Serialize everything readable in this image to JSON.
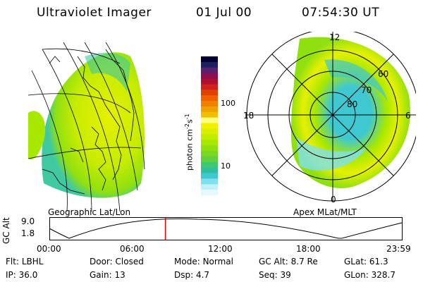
{
  "header": {
    "instrument": "Ultraviolet Imager",
    "date": "01 Jul 00",
    "time": "07:54:30 UT"
  },
  "geo_panel": {
    "label": "Geographic Lat/Lon"
  },
  "polar_panel": {
    "label": "Apex MLat/MLT",
    "mlt_labels": {
      "top": "12",
      "left": "18",
      "right": "6",
      "bottom": "0"
    },
    "lat_labels": [
      "60",
      "70",
      "80"
    ]
  },
  "colorbar": {
    "unit_main": "photon cm",
    "unit_exp1": "-2",
    "unit_mid": "s",
    "unit_exp2": "-1",
    "ticks": [
      "100",
      "10"
    ],
    "colors": [
      "#000030",
      "#202060",
      "#5a2070",
      "#8a1050",
      "#b01030",
      "#d02020",
      "#e04000",
      "#f06000",
      "#f08000",
      "#f0a000",
      "#f0c000",
      "#ffff80",
      "#f0f000",
      "#d8f000",
      "#c0ec00",
      "#a8e800",
      "#90e010",
      "#78d820",
      "#60d040",
      "#40c870",
      "#30c0a0",
      "#40c8d0",
      "#80e0f0",
      "#c0f0f8",
      "#e8f8ff"
    ]
  },
  "altitude_plot": {
    "ylabel": "GC Alt",
    "yticks": [
      "9.0",
      "1.8"
    ],
    "xticks": [
      "00:00",
      "06:00",
      "12:00",
      "18:00",
      "23:59"
    ],
    "marker_hour": 7.9,
    "marker_color": "#e00000"
  },
  "info": {
    "row1": [
      {
        "label": "Flt:",
        "value": "LBHL"
      },
      {
        "label": "Door:",
        "value": "Closed"
      },
      {
        "label": "Mode:",
        "value": "Normal"
      },
      {
        "label": "GC Alt:",
        "value": "8.7 Re"
      },
      {
        "label": "GLat:",
        "value": "61.3"
      }
    ],
    "row2": [
      {
        "label": "IP:",
        "value": "36.0"
      },
      {
        "label": "Gain:",
        "value": "13"
      },
      {
        "label": "Dsp:",
        "value": "4.7"
      },
      {
        "label": "Seq:",
        "value": "39"
      },
      {
        "label": "GLon:",
        "value": "328.7"
      }
    ]
  }
}
